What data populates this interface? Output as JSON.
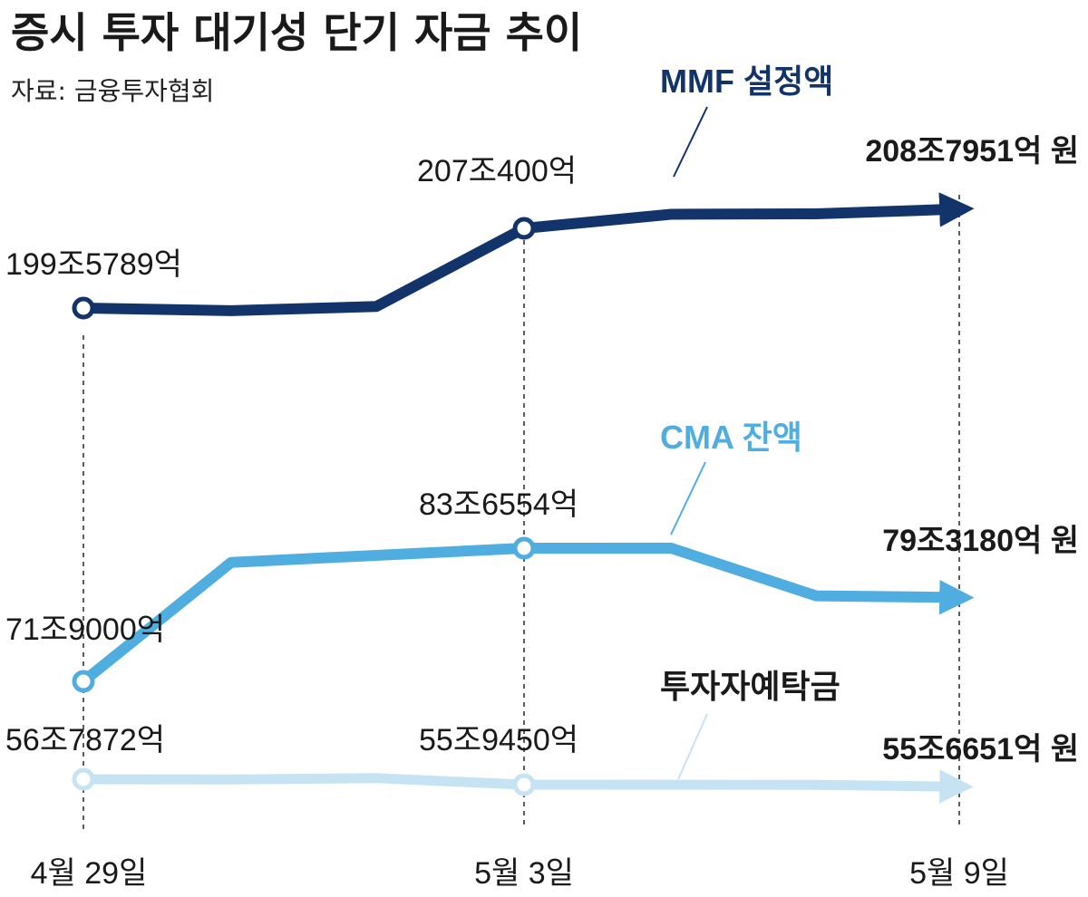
{
  "chart_data": {
    "type": "line",
    "title": "증시 투자 대기성 단기 자금 추이",
    "subtitle": "자료: 금융투자협회",
    "x_tick_labels": [
      "4월 29일",
      "5월 3일",
      "5월 9일"
    ],
    "unit": "억 원",
    "series": [
      {
        "name": "MMF 설정액",
        "color": "#12346a",
        "line_width": 12,
        "values": [
          1995789,
          1993300,
          1997200,
          2070400,
          2083500,
          2084000,
          2087951
        ],
        "labels": [
          "199조5789억",
          "207조400억",
          "208조7951억 원"
        ]
      },
      {
        "name": "CMA 잔액",
        "color": "#50ade0",
        "line_width": 12,
        "values": [
          719000,
          824000,
          836554,
          836600,
          794500,
          793180
        ],
        "labels": [
          "71조9000억",
          "83조6554억",
          "79조3180억 원"
        ]
      },
      {
        "name": "투자자예탁금",
        "color": "#c6e3f3",
        "line_width": 11,
        "values": [
          567872,
          567500,
          569500,
          559450,
          559000,
          556651
        ],
        "labels": [
          "56조7872억",
          "55조9450억",
          "55조6651억 원"
        ]
      }
    ]
  }
}
